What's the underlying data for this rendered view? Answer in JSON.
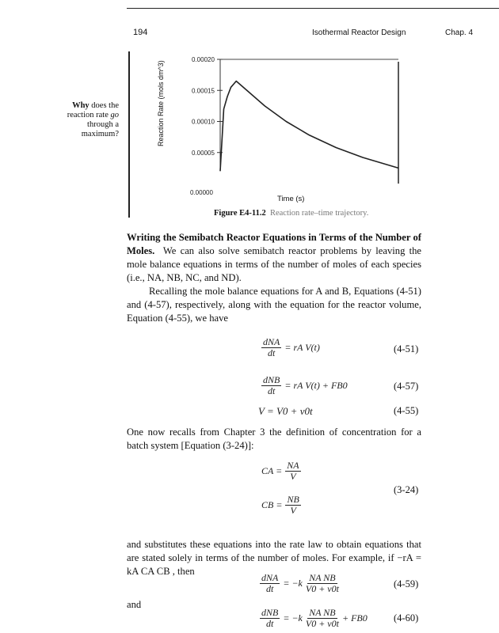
{
  "header": {
    "page_number": "194",
    "running_title": "Isothermal Reactor Design",
    "chapter": "Chap. 4"
  },
  "margin_note": {
    "bold_part": "Why",
    "rest": " does the reaction rate ",
    "italic_part": "go",
    "rest2": " through a maximum?"
  },
  "figure": {
    "caption_label": "Figure E4-11.2",
    "caption_text": "Reaction rate–time trajectory.",
    "chart_data": {
      "type": "line",
      "xlabel": "Time (s)",
      "ylabel": "Reaction Rate (mols dm^3)",
      "ylim": [
        0,
        0.0002
      ],
      "yticks": [
        "0.00000",
        "0.00005",
        "0.00010",
        "0.00015",
        "0.00020"
      ],
      "grid": false,
      "x_fraction_of_time_range": [
        0,
        0.02,
        0.04,
        0.06,
        0.09,
        0.15,
        0.25,
        0.37,
        0.5,
        0.65,
        0.8,
        1.0
      ],
      "values": [
        2e-05,
        0.00012,
        0.00014,
        0.000155,
        0.000165,
        0.00015,
        0.000125,
        0.0001,
        7.8e-05,
        5.8e-05,
        4.2e-05,
        2.5e-05
      ]
    }
  },
  "section": {
    "heading": "Writing the Semibatch Reactor Equations in Terms of the Number of Moles.",
    "p1": "We can also solve semibatch reactor problems by leaving the mole balance equations in terms of the number of moles of each species (i.e., NA, NB, NC, and ND).",
    "p2": "Recalling the mole balance equations for A and B, Equations (4-51) and (4-57), respectively, along with the equation for the reactor volume, Equation (4-55), we have",
    "p3": "One now recalls from Chapter 3 the definition of concentration for a batch system [Equation (3-24)]:",
    "p4": "and substitutes these equations into the rate law to obtain equations that are stated solely in terms of the number of moles. For example, if −rA = kA CA CB , then",
    "and": "and"
  },
  "equations": [
    {
      "num": "dNA",
      "den": "dt",
      "rhs": "= rA V(t)",
      "label": "(4-51)"
    },
    {
      "num": "dNB",
      "den": "dt",
      "rhs": "= rA V(t) + FB0",
      "label": "(4-57)"
    },
    {
      "lhs": "V = V0 + v0t",
      "label": "(4-55)"
    },
    {
      "lhs": "CA =",
      "num": "NA",
      "den": "V",
      "label": "(3-24)"
    },
    {
      "lhs": "CB =",
      "num": "NB",
      "den": "V"
    },
    {
      "num": "dNA",
      "den": "dt",
      "rhs": "= −k",
      "num2": "NA NB",
      "den2": "V0 + v0t",
      "label": "(4-59)"
    },
    {
      "num": "dNB",
      "den": "dt",
      "rhs": "= −k",
      "num2": "NA NB",
      "den2": "V0 + v0t",
      "rhs2": "+ FB0",
      "label": "(4-60)"
    }
  ]
}
